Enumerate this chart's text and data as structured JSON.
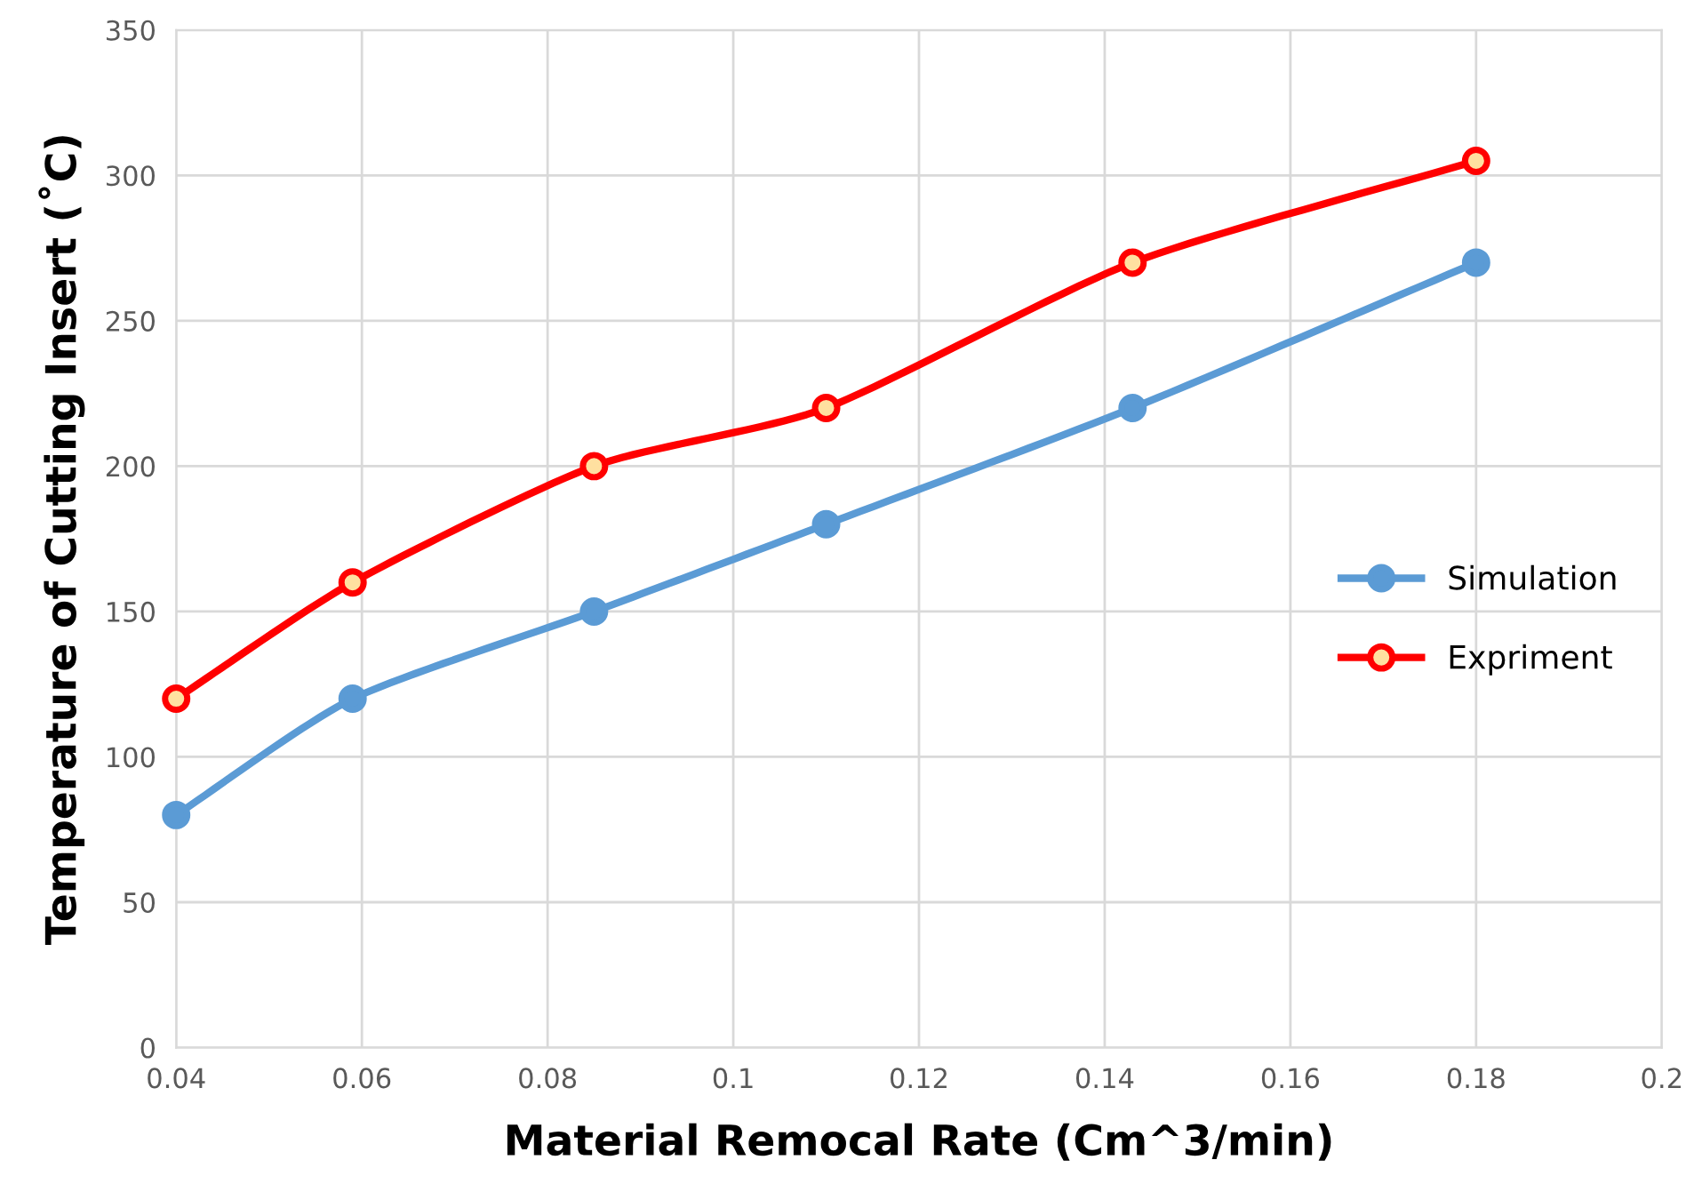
{
  "chart_data": {
    "type": "line",
    "xlabel": "Material Remocal Rate (Cm^3/min)",
    "ylabel": "Temperature of Cutting Insert (˚C)",
    "xlim": [
      0.04,
      0.2
    ],
    "xticks": [
      0.04,
      0.06,
      0.08,
      0.1,
      0.12,
      0.14,
      0.16,
      0.18,
      0.2
    ],
    "ylim": [
      0,
      350
    ],
    "yticks": [
      0,
      50,
      100,
      150,
      200,
      250,
      300,
      350
    ],
    "grid": true,
    "legend": "right",
    "marker": "circle",
    "line_style": "solid",
    "series": [
      {
        "name": "Simulation",
        "color": "#5b9bd5",
        "x": [
          0.04,
          0.059,
          0.085,
          0.11,
          0.143,
          0.18
        ],
        "values": [
          80,
          120,
          150,
          180,
          220,
          270
        ]
      },
      {
        "name": "Expriment",
        "color": "#ff0000",
        "x": [
          0.04,
          0.059,
          0.085,
          0.11,
          0.143,
          0.18
        ],
        "values": [
          120,
          160,
          200,
          220,
          270,
          305
        ]
      }
    ]
  }
}
